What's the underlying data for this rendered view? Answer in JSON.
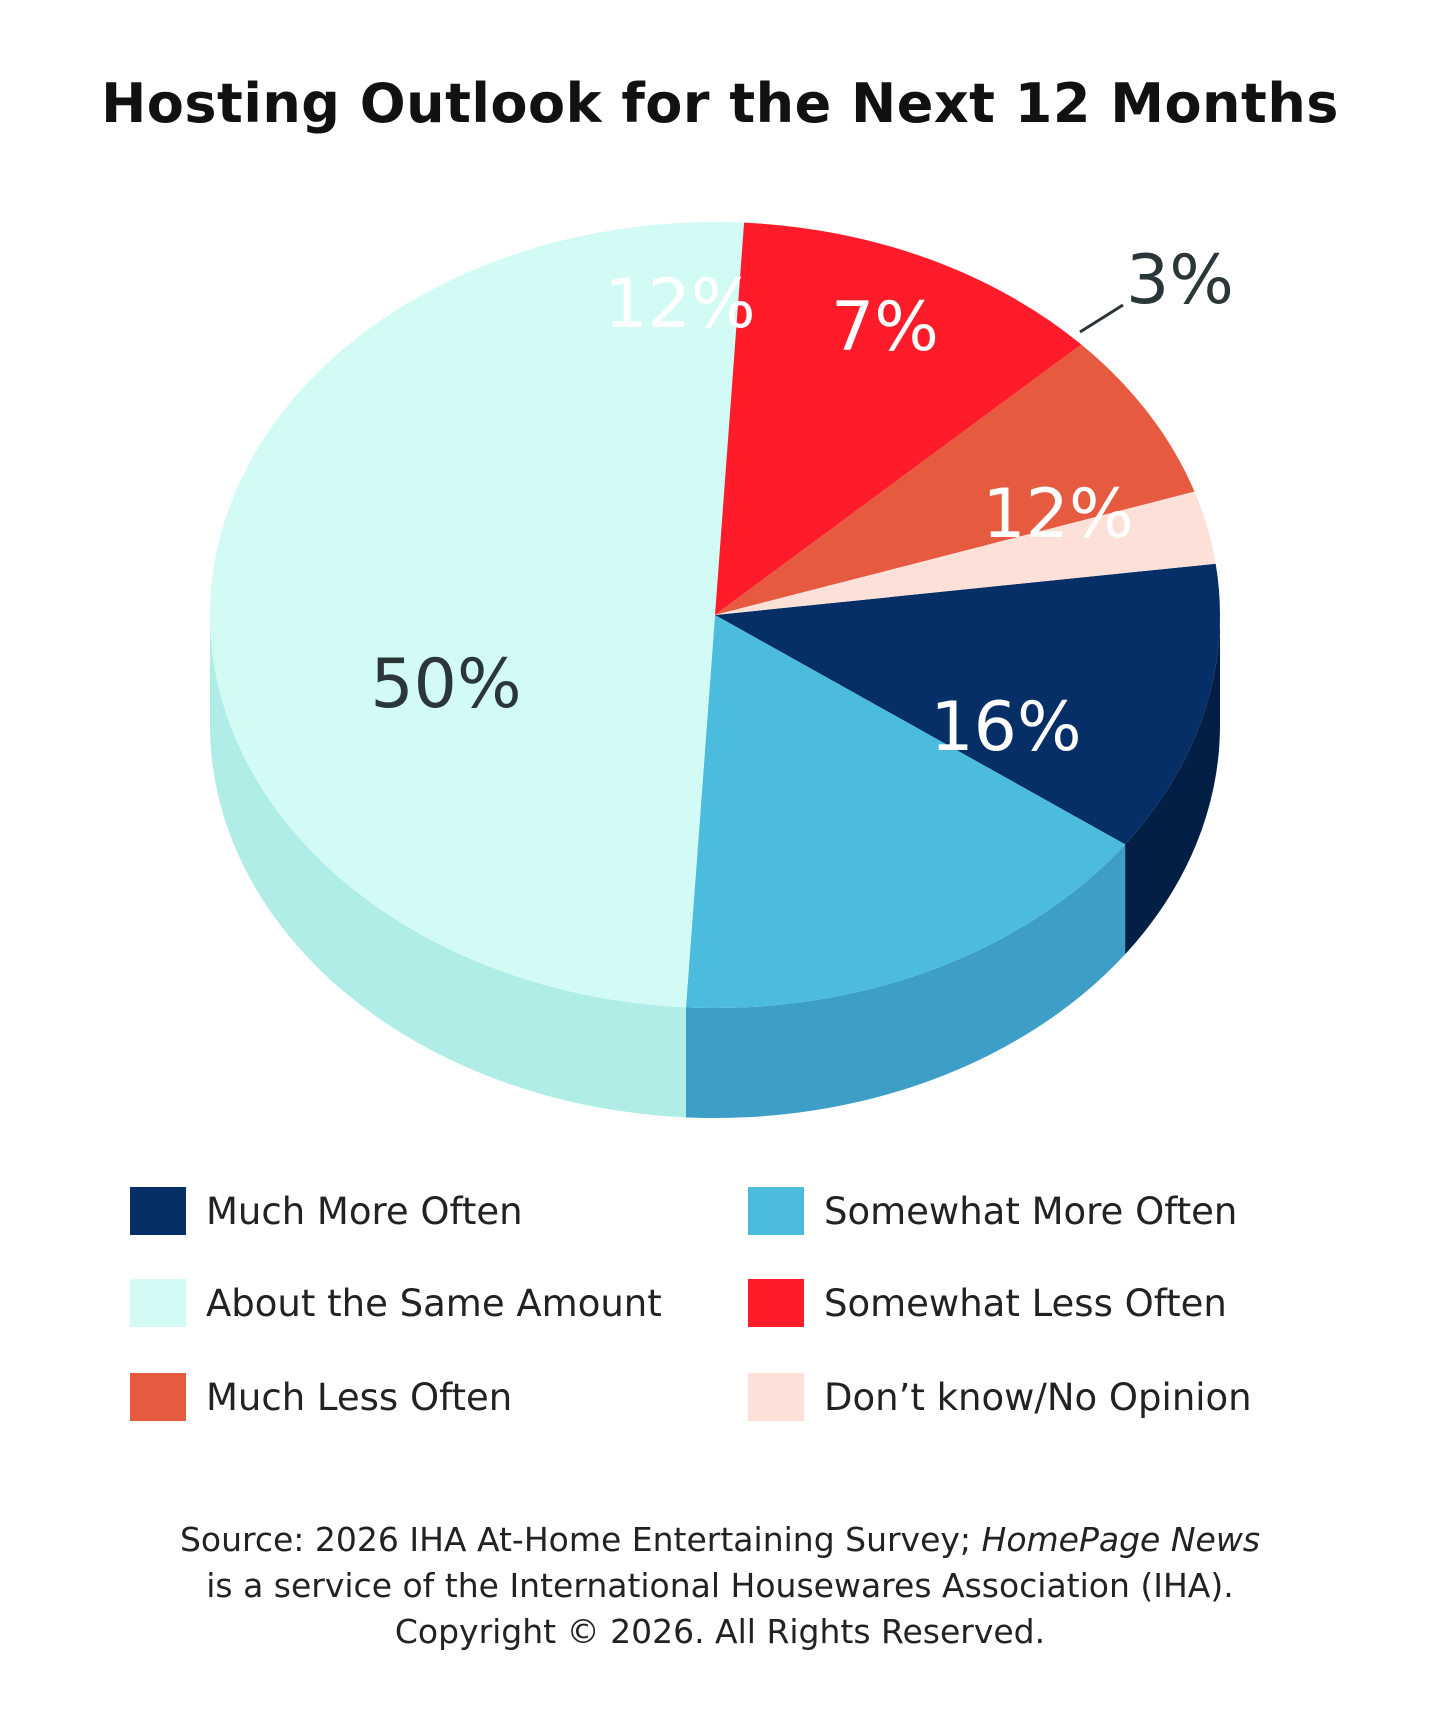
{
  "title": "Hosting Outlook for the Next 12 Months",
  "chart_data": {
    "type": "pie",
    "title": "Hosting Outlook for the Next 12 Months",
    "style": "3d",
    "slices": [
      {
        "label": "Much More Often",
        "value": 12,
        "display": "12%",
        "color": "#052f66",
        "side_color": "#031f45",
        "text_color": "#ffffff"
      },
      {
        "label": "Somewhat More Often",
        "value": 16,
        "display": "16%",
        "color": "#4cbcde",
        "side_color": "#3d9fc7",
        "text_color": "#ffffff"
      },
      {
        "label": "About the Same Amount",
        "value": 50,
        "display": "50%",
        "color": "#d2fbf5",
        "side_color": "#b0ede6",
        "text_color": "#2b3638"
      },
      {
        "label": "Somewhat Less Often",
        "value": 12,
        "display": "12%",
        "color": "#fe1c2a",
        "side_color": "#d01520",
        "text_color": "#ffffff"
      },
      {
        "label": "Much Less Often",
        "value": 7,
        "display": "7%",
        "color": "#e65b40",
        "side_color": "#c64a33",
        "text_color": "#ffffff"
      },
      {
        "label": "Don’t know/No Opinion",
        "value": 3,
        "display": "3%",
        "color": "#fde1d8",
        "side_color": "#eec9bd",
        "text_color": "#2b3638"
      }
    ],
    "legend_position": "bottom"
  },
  "legend": [
    {
      "label": "Much More Often",
      "color": "#052f66"
    },
    {
      "label": "Somewhat More Often",
      "color": "#4cbcde"
    },
    {
      "label": "About the Same Amount",
      "color": "#d2fbf5"
    },
    {
      "label": "Somewhat Less Often",
      "color": "#fe1c2a"
    },
    {
      "label": "Much Less Often",
      "color": "#e65b40"
    },
    {
      "label": "Don’t know/No Opinion",
      "color": "#fde1d8"
    }
  ],
  "source": {
    "line1_pre": "Source: 2026 IHA At-Home Entertaining Survey; ",
    "line1_italic": "HomePage News",
    "line2": "is a service of the International Housewares Association (IHA).",
    "line3": "Copyright © 2026. All Rights Reserved."
  }
}
